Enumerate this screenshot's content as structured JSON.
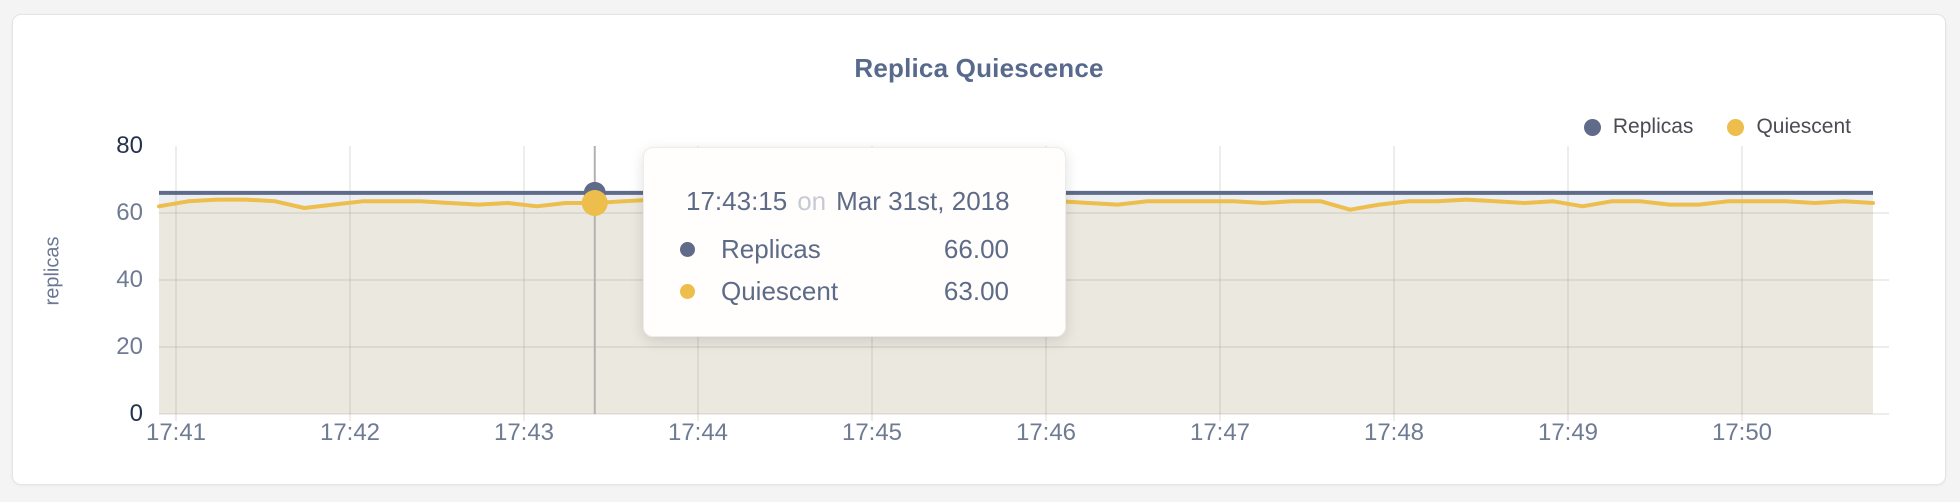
{
  "header": {
    "title": "Replica Quiescence"
  },
  "legend": {
    "items": [
      {
        "label": "Replicas",
        "color": "#5f6b88"
      },
      {
        "label": "Quiescent",
        "color": "#edbe4b"
      }
    ]
  },
  "tooltip": {
    "time": "17:43:15",
    "conjunction": "on",
    "date": "Mar 31st, 2018",
    "rows": [
      {
        "label": "Replicas",
        "value": "66.00",
        "color": "#5f6b88"
      },
      {
        "label": "Quiescent",
        "value": "63.00",
        "color": "#edbe4b"
      }
    ]
  },
  "chart_data": {
    "type": "area",
    "title": "Replica Quiescence",
    "xlabel": "",
    "ylabel": "replicas",
    "ylim": [
      0,
      80
    ],
    "y_tick_values": [
      0,
      20,
      40,
      60,
      80
    ],
    "x_tick_labels": [
      "17:41",
      "17:42",
      "17:43",
      "17:44",
      "17:45",
      "17:46",
      "17:47",
      "17:48",
      "17:49",
      "17:50"
    ],
    "grid": true,
    "legend_position": "top-right",
    "colors": {
      "replicas_line": "#5f6b88",
      "quiescent_line": "#edbe4b",
      "replicas_fill": "rgba(72,95,140,0.10)",
      "quiescent_fill": "rgba(236,227,200,0.45)",
      "gridline": "rgba(96,92,80,0.11)",
      "crosshair": "#b4b2ae"
    },
    "series": [
      {
        "name": "Replicas",
        "color": "#5f6b88",
        "constant_value": 66
      },
      {
        "name": "Quiescent",
        "color": "#edbe4b",
        "values": [
          62,
          63.5,
          64,
          64,
          63.5,
          61.5,
          62.5,
          63.5,
          63.5,
          63.5,
          63,
          62.5,
          63,
          62,
          63,
          63,
          63.5,
          64,
          63.5,
          63.5,
          64,
          63.5,
          63,
          63.5,
          64,
          63.5,
          63.5,
          64,
          63.5,
          62.5,
          63.5,
          63.5,
          63,
          62.5,
          63.5,
          63.5,
          63.5,
          63.5,
          63,
          63.5,
          63.5,
          61,
          62.5,
          63.5,
          63.5,
          64,
          63.5,
          63,
          63.5,
          62,
          63.5,
          63.5,
          62.5,
          62.5,
          63.5,
          63.5,
          63.5,
          63,
          63.5,
          63
        ]
      }
    ],
    "hover": {
      "index": 15,
      "time": "17:43:15",
      "date": "Mar 31st, 2018",
      "replicas_value": 66,
      "quiescent_value": 63
    }
  }
}
